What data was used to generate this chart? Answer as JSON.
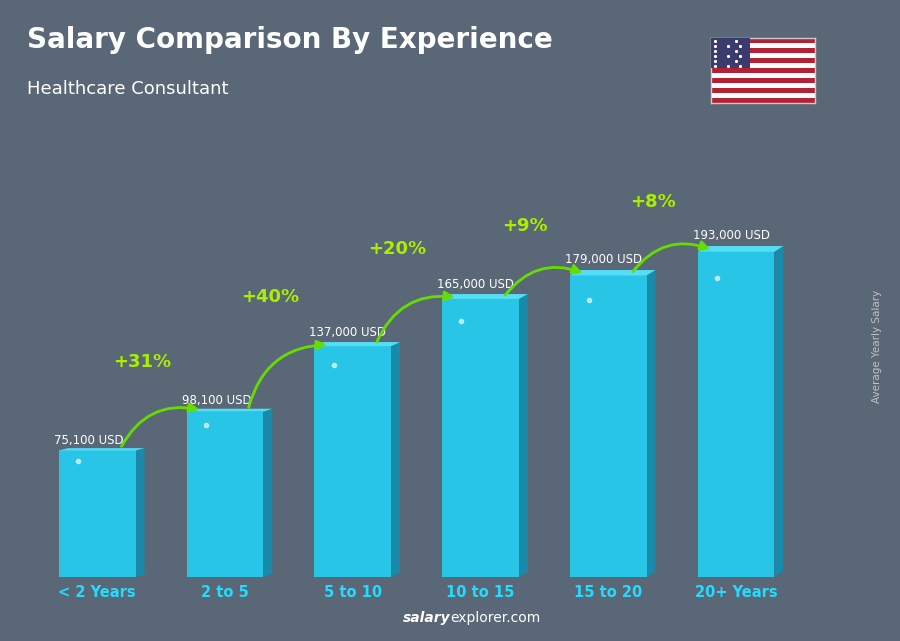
{
  "title": "Salary Comparison By Experience",
  "subtitle": "Healthcare Consultant",
  "categories": [
    "< 2 Years",
    "2 to 5",
    "5 to 10",
    "10 to 15",
    "15 to 20",
    "20+ Years"
  ],
  "values": [
    75100,
    98100,
    137000,
    165000,
    179000,
    193000
  ],
  "value_labels": [
    "75,100 USD",
    "98,100 USD",
    "137,000 USD",
    "165,000 USD",
    "179,000 USD",
    "193,000 USD"
  ],
  "pct_changes": [
    null,
    "+31%",
    "+40%",
    "+20%",
    "+9%",
    "+8%"
  ],
  "bar_front_color": "#29c5e6",
  "bar_right_color": "#1a8aaa",
  "bar_top_color": "#55ddf5",
  "bg_color": "#5a6a7a",
  "title_color": "#ffffff",
  "subtitle_color": "#ffffff",
  "ylabel": "Average Yearly Salary",
  "footer_bold": "salary",
  "footer_normal": "explorer.com",
  "pct_color": "#aaee00",
  "value_label_color": "#ffffff",
  "xlabel_color": "#22ddff",
  "arrow_color": "#66dd00",
  "ylabel_color": "#cccccc"
}
